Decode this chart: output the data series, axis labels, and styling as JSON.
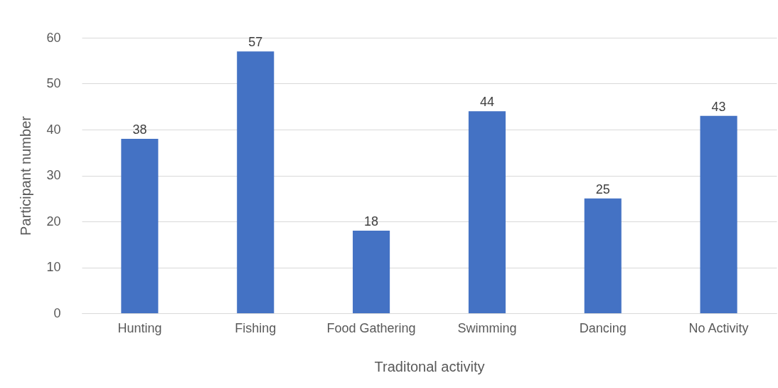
{
  "chart_data": {
    "type": "bar",
    "xlabel": "Traditonal activity",
    "ylabel": "Participant number",
    "categories": [
      "Hunting",
      "Fishing",
      "Food Gathering",
      "Swimming",
      "Dancing",
      "No Activity"
    ],
    "values": [
      38,
      57,
      18,
      44,
      25,
      43
    ],
    "color": "#4472c4",
    "ylim": [
      0,
      60
    ],
    "yticks": [
      0,
      10,
      20,
      30,
      40,
      50,
      60
    ],
    "grid": "y",
    "data_labels": true
  }
}
